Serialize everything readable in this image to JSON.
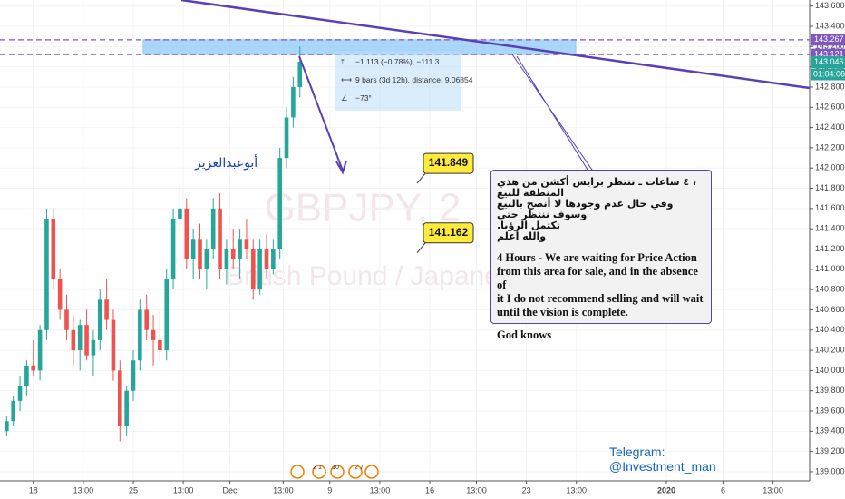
{
  "chart_data": {
    "type": "candlestick",
    "watermark": "GBPJPY, 2",
    "watermark_sub": "British Pound / Japane",
    "x": [
      -8,
      -6,
      -4,
      -2,
      0,
      2,
      4,
      6,
      8,
      10,
      12,
      14,
      16,
      18,
      20,
      22,
      24,
      26,
      28,
      30,
      32,
      34,
      36,
      38,
      40,
      42,
      44,
      46,
      48,
      50,
      52,
      54,
      56,
      58,
      60,
      62,
      64,
      66,
      68,
      70,
      72,
      74,
      76,
      78,
      80
    ],
    "open": [
      139.4,
      139.5,
      139.7,
      139.85,
      140.05,
      140.0,
      140.4,
      141.5,
      140.9,
      140.6,
      140.4,
      140.2,
      140.45,
      140.15,
      140.3,
      140.7,
      140.5,
      140.0,
      139.45,
      139.8,
      140.1,
      140.6,
      140.4,
      140.3,
      140.2,
      140.9,
      141.5,
      141.6,
      141.1,
      141.3,
      141.0,
      141.2,
      141.6,
      141.0,
      141.2,
      141.1,
      141.3,
      141.2,
      140.8,
      141.2,
      141.0,
      141.2,
      142.1,
      142.5,
      142.8
    ],
    "high": [
      139.55,
      139.75,
      139.95,
      140.1,
      140.3,
      140.45,
      141.6,
      141.6,
      141.0,
      140.75,
      140.55,
      140.5,
      140.6,
      140.4,
      140.8,
      140.9,
      140.6,
      140.1,
      139.85,
      140.2,
      140.7,
      140.75,
      140.55,
      140.6,
      141.0,
      141.6,
      141.85,
      141.7,
      141.4,
      141.45,
      141.3,
      141.7,
      141.75,
      141.3,
      141.4,
      141.4,
      141.5,
      141.3,
      141.3,
      141.35,
      141.3,
      142.2,
      142.6,
      142.9,
      143.2
    ],
    "low": [
      139.35,
      139.45,
      139.6,
      139.75,
      139.95,
      139.9,
      140.3,
      140.8,
      140.5,
      140.3,
      140.05,
      140.0,
      140.1,
      139.95,
      140.2,
      140.4,
      139.9,
      139.3,
      139.35,
      139.7,
      140.0,
      140.3,
      140.05,
      140.1,
      140.1,
      140.8,
      141.3,
      141.0,
      140.9,
      140.9,
      140.8,
      141.1,
      140.9,
      140.85,
      141.0,
      140.9,
      141.1,
      140.7,
      140.75,
      140.9,
      140.95,
      141.1,
      142.0,
      142.4,
      142.7
    ],
    "close": [
      139.5,
      139.7,
      139.85,
      140.05,
      140.0,
      140.4,
      141.5,
      140.9,
      140.6,
      140.4,
      140.2,
      140.45,
      140.15,
      140.3,
      140.7,
      140.5,
      140.0,
      139.45,
      139.8,
      140.1,
      140.6,
      140.4,
      140.3,
      140.2,
      140.9,
      141.5,
      141.6,
      141.1,
      141.3,
      141.0,
      141.2,
      141.6,
      141.0,
      141.2,
      141.1,
      141.3,
      141.2,
      140.8,
      141.2,
      141.0,
      141.2,
      142.1,
      142.5,
      142.8,
      143.05
    ],
    "up_color": "#26a69a",
    "down_color": "#ef5350",
    "xlim": [
      -10,
      233
    ],
    "xticks": [
      {
        "value": 0,
        "label": "18"
      },
      {
        "value": 15,
        "label": "13:00"
      },
      {
        "value": 30,
        "label": "25"
      },
      {
        "value": 45,
        "label": "13:00"
      },
      {
        "value": 59,
        "label": "Dec"
      },
      {
        "value": 75,
        "label": "13:00"
      },
      {
        "value": 89,
        "label": "9"
      },
      {
        "value": 104,
        "label": "13:00"
      },
      {
        "value": 119,
        "label": "16"
      },
      {
        "value": 133,
        "label": "13:00"
      },
      {
        "value": 148,
        "label": "23"
      },
      {
        "value": 163,
        "label": "13:00"
      },
      {
        "value": 190,
        "label": "2020"
      },
      {
        "value": 207,
        "label": "6"
      },
      {
        "value": 222,
        "label": "13:00"
      }
    ],
    "ylim": [
      138.91,
      143.66
    ],
    "yticks": [
      {
        "value": 139.0,
        "label": "139.000"
      },
      {
        "value": 139.2,
        "label": "139.200"
      },
      {
        "value": 139.4,
        "label": "139.400"
      },
      {
        "value": 139.6,
        "label": "139.600"
      },
      {
        "value": 139.8,
        "label": "139.800"
      },
      {
        "value": 140.0,
        "label": "140.000"
      },
      {
        "value": 140.2,
        "label": "140.200"
      },
      {
        "value": 140.4,
        "label": "140.400"
      },
      {
        "value": 140.6,
        "label": "140.600"
      },
      {
        "value": 140.8,
        "label": "140.800"
      },
      {
        "value": 141.0,
        "label": "141.000"
      },
      {
        "value": 141.2,
        "label": "141.200"
      },
      {
        "value": 141.4,
        "label": "141.400"
      },
      {
        "value": 141.6,
        "label": "141.600"
      },
      {
        "value": 141.8,
        "label": "141.800"
      },
      {
        "value": 142.0,
        "label": "142.000"
      },
      {
        "value": 142.2,
        "label": "142.200"
      },
      {
        "value": 142.4,
        "label": "142.400"
      },
      {
        "value": 142.6,
        "label": "142.600"
      },
      {
        "value": 142.8,
        "label": "142.800"
      },
      {
        "value": 143.0,
        "label": "143.000"
      },
      {
        "value": 143.2,
        "label": "143.200"
      },
      {
        "value": 143.4,
        "label": "143.400"
      },
      {
        "value": 143.6,
        "label": "143.600"
      }
    ],
    "zone": [
      {
        "value": 143.267,
        "label": "143.267"
      },
      {
        "value": 143.121,
        "label": "143.121"
      }
    ],
    "zone_color": "#7e57c2",
    "last_price": {
      "value": 143.046,
      "label": "143.046"
    },
    "last_color": "#26a69a",
    "countdown": "01:04:06",
    "price_marks": [
      141.849,
      141.162
    ],
    "measure": [
      "−1.113 (−0.78%), −111.3",
      "9 bars (3d 12h), distance: 9.06854",
      "−73°"
    ],
    "author": "أبوعبدالعزيز",
    "note_ar": [
      "، ٤ ساعات ـ ننتظر برايس أكشن من هذي المنطقة للبيع",
      "وفي حال عدم وجودها لا أنصح بالبيع وسوف ننتظر حتى",
      "تكتمل الرؤيا.",
      "والله أعلم"
    ],
    "note_en": [
      "4 Hours - We are waiting for Price Action",
      "from this area for sale, and in the absence of",
      "it I do not recommend selling and will wait",
      "until the vision is complete."
    ],
    "note_end": "God knows",
    "telegram": [
      "Telegram:",
      "@Investment_man"
    ],
    "badges": [
      "2 1",
      "10",
      "2 7"
    ]
  }
}
